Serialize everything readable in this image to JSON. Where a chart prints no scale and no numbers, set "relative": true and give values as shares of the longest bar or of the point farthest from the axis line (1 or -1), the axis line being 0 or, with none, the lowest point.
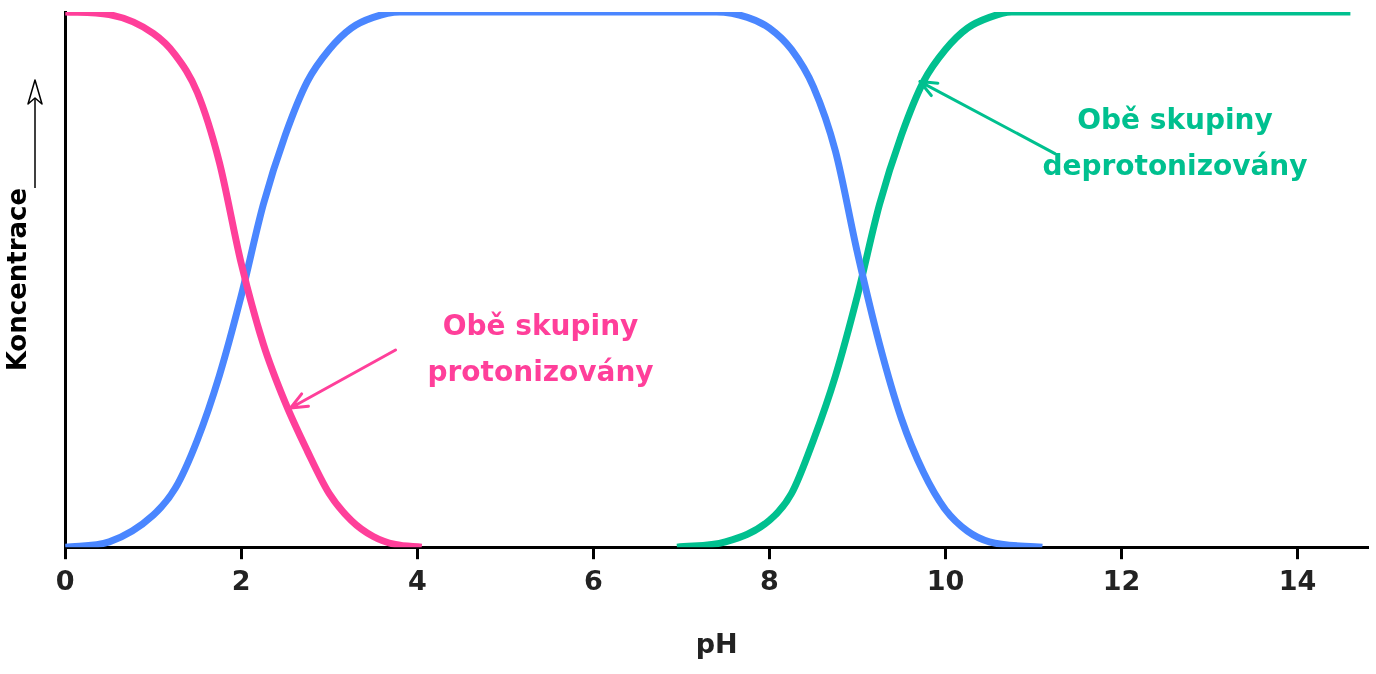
{
  "chart_data": {
    "type": "line",
    "relative": true,
    "xlabel": "pH",
    "ylabel": "Koncentrace",
    "xlim": [
      0,
      14.8
    ],
    "xticks": [
      0,
      2,
      4,
      6,
      8,
      10,
      12,
      14
    ],
    "grid": false,
    "legend": false,
    "marker": "none",
    "line_style": "solid",
    "series": [
      {
        "color": "#ff3f9a",
        "x": [
          0,
          0.5,
          1,
          1.25,
          1.5,
          1.75,
          2,
          2.25,
          2.5,
          2.75,
          3,
          3.25,
          3.5,
          3.75,
          4.05
        ],
        "values": [
          1,
          0.995,
          0.96,
          0.92,
          0.85,
          0.72,
          0.53,
          0.38,
          0.27,
          0.18,
          0.1,
          0.05,
          0.02,
          0.005,
          0
        ]
      },
      {
        "color": "#4a86ff",
        "x": [
          0,
          0.5,
          1,
          1.25,
          1.5,
          1.75,
          2,
          2.25,
          2.5,
          2.75,
          3,
          3.25,
          3.5,
          3.8,
          7.4,
          7.75,
          8,
          8.25,
          8.5,
          8.75,
          9,
          9.25,
          9.5,
          9.75,
          10,
          10.25,
          10.5,
          11.1
        ],
        "values": [
          0,
          0.01,
          0.06,
          0.11,
          0.2,
          0.32,
          0.47,
          0.64,
          0.77,
          0.87,
          0.93,
          0.97,
          0.99,
          1,
          1,
          0.99,
          0.97,
          0.93,
          0.86,
          0.74,
          0.55,
          0.38,
          0.24,
          0.14,
          0.07,
          0.03,
          0.01,
          0
        ]
      },
      {
        "color": "#00c08f",
        "x": [
          6.95,
          7.5,
          8,
          8.25,
          8.5,
          8.75,
          9,
          9.25,
          9.5,
          9.75,
          10,
          10.25,
          10.5,
          10.75,
          14.6
        ],
        "values": [
          0,
          0.01,
          0.05,
          0.1,
          0.2,
          0.32,
          0.47,
          0.64,
          0.77,
          0.87,
          0.93,
          0.97,
          0.99,
          1,
          1
        ]
      }
    ],
    "annotations": [
      {
        "text": "Obě skupiny\nprotonizovány",
        "x": 2.56,
        "y": 0.26
      },
      {
        "text": "Obě skupiny\ndeprotonizovány",
        "x": 9.71,
        "y": 0.87
      }
    ]
  }
}
